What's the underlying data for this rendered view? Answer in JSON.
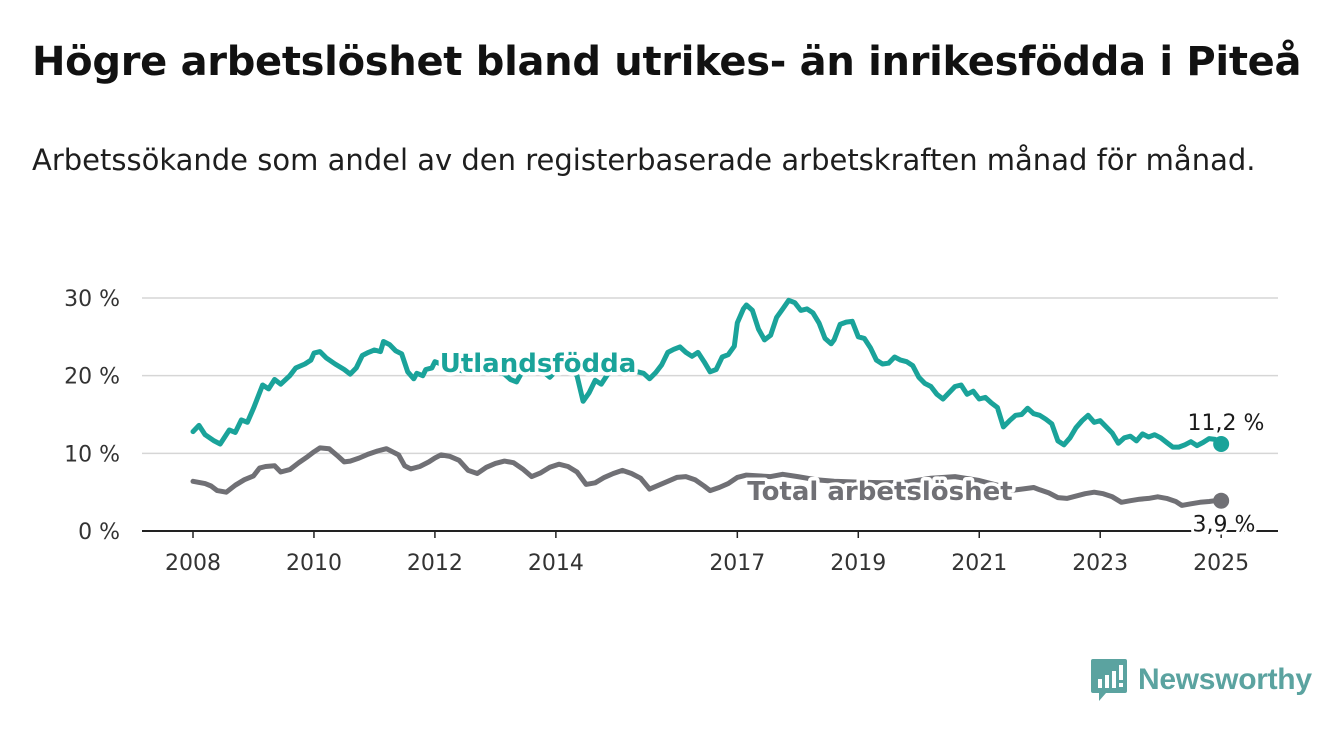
{
  "title": "Högre arbetslöshet bland utrikes- än inrikesfödda i Piteå",
  "subtitle": "Arbetssökande som andel av den registerbaserade arbetskraften månad för månad.",
  "brand": {
    "name": "Newsworthy",
    "color": "#5ba3a0"
  },
  "chart_data": {
    "type": "line",
    "title": "Högre arbetslöshet bland utrikes- än inrikesfödda i Piteå",
    "subtitle": "Arbetssökande som andel av den registerbaserade arbetskraften månad för månad.",
    "xlim": [
      2008.0,
      2025.08
    ],
    "ylim": [
      0,
      30
    ],
    "y_ticks": [
      {
        "value": 0,
        "label": "0 %"
      },
      {
        "value": 10,
        "label": "10 %"
      },
      {
        "value": 20,
        "label": "20 %"
      },
      {
        "value": 30,
        "label": "30 %"
      }
    ],
    "x_ticks": [
      {
        "value": 2008,
        "label": "2008"
      },
      {
        "value": 2010,
        "label": "2010"
      },
      {
        "value": 2012,
        "label": "2012"
      },
      {
        "value": 2014,
        "label": "2014"
      },
      {
        "value": 2017,
        "label": "2017"
      },
      {
        "value": 2019,
        "label": "2019"
      },
      {
        "value": 2021,
        "label": "2021"
      },
      {
        "value": 2023,
        "label": "2023"
      },
      {
        "value": 2025,
        "label": "2025"
      }
    ],
    "grid": true,
    "legend": "inline labels",
    "series": [
      {
        "name": "Utlandsfödda",
        "color": "#1aa39a",
        "end_label": "11,2 %",
        "points": [
          [
            2008.0,
            12.8
          ],
          [
            2008.1,
            13.6
          ],
          [
            2008.2,
            12.4
          ],
          [
            2008.35,
            11.6
          ],
          [
            2008.45,
            11.2
          ],
          [
            2008.6,
            13.0
          ],
          [
            2008.7,
            12.7
          ],
          [
            2008.8,
            14.3
          ],
          [
            2008.9,
            14.0
          ],
          [
            2009.0,
            15.8
          ],
          [
            2009.15,
            18.8
          ],
          [
            2009.25,
            18.3
          ],
          [
            2009.35,
            19.5
          ],
          [
            2009.45,
            18.9
          ],
          [
            2009.6,
            20.0
          ],
          [
            2009.7,
            21.0
          ],
          [
            2009.85,
            21.5
          ],
          [
            2009.95,
            22.0
          ],
          [
            2010.0,
            22.9
          ],
          [
            2010.1,
            23.1
          ],
          [
            2010.2,
            22.3
          ],
          [
            2010.35,
            21.5
          ],
          [
            2010.5,
            20.8
          ],
          [
            2010.6,
            20.2
          ],
          [
            2010.7,
            21.0
          ],
          [
            2010.8,
            22.6
          ],
          [
            2010.9,
            23.0
          ],
          [
            2011.0,
            23.3
          ],
          [
            2011.1,
            23.1
          ],
          [
            2011.15,
            24.4
          ],
          [
            2011.25,
            24.0
          ],
          [
            2011.35,
            23.2
          ],
          [
            2011.45,
            22.8
          ],
          [
            2011.55,
            20.5
          ],
          [
            2011.65,
            19.6
          ],
          [
            2011.7,
            20.3
          ],
          [
            2011.8,
            20.0
          ],
          [
            2011.85,
            20.8
          ],
          [
            2011.95,
            21.0
          ],
          [
            2012.0,
            21.8
          ],
          [
            2012.1,
            21.5
          ],
          [
            2012.3,
            21.0
          ],
          [
            2012.5,
            20.5
          ],
          [
            2012.7,
            20.8
          ],
          [
            2012.9,
            21.0
          ],
          [
            2013.0,
            20.6
          ],
          [
            2013.15,
            20.2
          ],
          [
            2013.25,
            19.5
          ],
          [
            2013.35,
            19.2
          ],
          [
            2013.45,
            20.6
          ],
          [
            2013.6,
            21.5
          ],
          [
            2013.75,
            20.8
          ],
          [
            2013.9,
            19.8
          ],
          [
            2014.0,
            20.6
          ],
          [
            2014.2,
            21.3
          ],
          [
            2014.35,
            20.0
          ],
          [
            2014.45,
            16.7
          ],
          [
            2014.55,
            17.8
          ],
          [
            2014.65,
            19.4
          ],
          [
            2014.75,
            18.9
          ],
          [
            2014.85,
            20.1
          ],
          [
            2014.95,
            21.0
          ],
          [
            2015.1,
            21.8
          ],
          [
            2015.3,
            20.6
          ],
          [
            2015.45,
            20.3
          ],
          [
            2015.55,
            19.6
          ],
          [
            2015.65,
            20.4
          ],
          [
            2015.75,
            21.4
          ],
          [
            2015.85,
            23.0
          ],
          [
            2015.95,
            23.4
          ],
          [
            2016.05,
            23.7
          ],
          [
            2016.15,
            23.0
          ],
          [
            2016.25,
            22.5
          ],
          [
            2016.35,
            23.0
          ],
          [
            2016.45,
            21.8
          ],
          [
            2016.55,
            20.5
          ],
          [
            2016.65,
            20.8
          ],
          [
            2016.75,
            22.4
          ],
          [
            2016.85,
            22.7
          ],
          [
            2016.95,
            23.8
          ],
          [
            2017.0,
            26.8
          ],
          [
            2017.1,
            28.6
          ],
          [
            2017.15,
            29.1
          ],
          [
            2017.25,
            28.4
          ],
          [
            2017.35,
            26.0
          ],
          [
            2017.45,
            24.6
          ],
          [
            2017.55,
            25.2
          ],
          [
            2017.65,
            27.5
          ],
          [
            2017.75,
            28.6
          ],
          [
            2017.85,
            29.7
          ],
          [
            2017.95,
            29.4
          ],
          [
            2018.05,
            28.4
          ],
          [
            2018.15,
            28.6
          ],
          [
            2018.25,
            28.1
          ],
          [
            2018.35,
            26.8
          ],
          [
            2018.45,
            24.8
          ],
          [
            2018.55,
            24.1
          ],
          [
            2018.6,
            24.6
          ],
          [
            2018.7,
            26.6
          ],
          [
            2018.8,
            26.9
          ],
          [
            2018.9,
            27.0
          ],
          [
            2019.0,
            25.0
          ],
          [
            2019.1,
            24.8
          ],
          [
            2019.2,
            23.6
          ],
          [
            2019.3,
            22.0
          ],
          [
            2019.4,
            21.5
          ],
          [
            2019.5,
            21.6
          ],
          [
            2019.6,
            22.4
          ],
          [
            2019.7,
            22.0
          ],
          [
            2019.8,
            21.8
          ],
          [
            2019.9,
            21.3
          ],
          [
            2020.0,
            19.8
          ],
          [
            2020.1,
            19.0
          ],
          [
            2020.2,
            18.6
          ],
          [
            2020.3,
            17.6
          ],
          [
            2020.4,
            17.0
          ],
          [
            2020.5,
            17.8
          ],
          [
            2020.6,
            18.6
          ],
          [
            2020.7,
            18.8
          ],
          [
            2020.8,
            17.6
          ],
          [
            2020.9,
            18.0
          ],
          [
            2021.0,
            17.0
          ],
          [
            2021.1,
            17.2
          ],
          [
            2021.2,
            16.5
          ],
          [
            2021.3,
            15.9
          ],
          [
            2021.4,
            13.4
          ],
          [
            2021.5,
            14.2
          ],
          [
            2021.6,
            14.9
          ],
          [
            2021.7,
            15.0
          ],
          [
            2021.8,
            15.8
          ],
          [
            2021.9,
            15.1
          ],
          [
            2022.0,
            14.9
          ],
          [
            2022.1,
            14.4
          ],
          [
            2022.2,
            13.8
          ],
          [
            2022.3,
            11.6
          ],
          [
            2022.4,
            11.1
          ],
          [
            2022.5,
            12.0
          ],
          [
            2022.6,
            13.3
          ],
          [
            2022.7,
            14.2
          ],
          [
            2022.8,
            14.9
          ],
          [
            2022.9,
            14.0
          ],
          [
            2023.0,
            14.2
          ],
          [
            2023.1,
            13.4
          ],
          [
            2023.2,
            12.6
          ],
          [
            2023.3,
            11.3
          ],
          [
            2023.4,
            12.0
          ],
          [
            2023.5,
            12.2
          ],
          [
            2023.6,
            11.6
          ],
          [
            2023.7,
            12.5
          ],
          [
            2023.8,
            12.1
          ],
          [
            2023.9,
            12.4
          ],
          [
            2024.0,
            12.0
          ],
          [
            2024.1,
            11.4
          ],
          [
            2024.2,
            10.8
          ],
          [
            2024.3,
            10.8
          ],
          [
            2024.4,
            11.1
          ],
          [
            2024.5,
            11.5
          ],
          [
            2024.6,
            11.0
          ],
          [
            2024.7,
            11.4
          ],
          [
            2024.8,
            11.9
          ],
          [
            2024.9,
            11.8
          ],
          [
            2025.0,
            11.2
          ]
        ]
      },
      {
        "name": "Total arbetslöshet",
        "color": "#707075",
        "end_label": "3,9 %",
        "points": [
          [
            2008.0,
            6.4
          ],
          [
            2008.2,
            6.1
          ],
          [
            2008.3,
            5.8
          ],
          [
            2008.4,
            5.2
          ],
          [
            2008.55,
            5.0
          ],
          [
            2008.7,
            5.9
          ],
          [
            2008.85,
            6.6
          ],
          [
            2009.0,
            7.1
          ],
          [
            2009.1,
            8.1
          ],
          [
            2009.2,
            8.3
          ],
          [
            2009.35,
            8.4
          ],
          [
            2009.45,
            7.6
          ],
          [
            2009.6,
            7.9
          ],
          [
            2009.75,
            8.8
          ],
          [
            2009.9,
            9.6
          ],
          [
            2010.0,
            10.2
          ],
          [
            2010.1,
            10.7
          ],
          [
            2010.25,
            10.6
          ],
          [
            2010.4,
            9.6
          ],
          [
            2010.5,
            8.9
          ],
          [
            2010.6,
            9.0
          ],
          [
            2010.75,
            9.4
          ],
          [
            2010.9,
            9.9
          ],
          [
            2011.05,
            10.3
          ],
          [
            2011.2,
            10.6
          ],
          [
            2011.3,
            10.2
          ],
          [
            2011.4,
            9.8
          ],
          [
            2011.5,
            8.4
          ],
          [
            2011.6,
            8.0
          ],
          [
            2011.75,
            8.3
          ],
          [
            2011.9,
            8.9
          ],
          [
            2012.0,
            9.4
          ],
          [
            2012.1,
            9.8
          ],
          [
            2012.25,
            9.6
          ],
          [
            2012.4,
            9.1
          ],
          [
            2012.55,
            7.8
          ],
          [
            2012.7,
            7.4
          ],
          [
            2012.85,
            8.2
          ],
          [
            2013.0,
            8.7
          ],
          [
            2013.15,
            9.0
          ],
          [
            2013.3,
            8.8
          ],
          [
            2013.45,
            8.0
          ],
          [
            2013.6,
            7.0
          ],
          [
            2013.75,
            7.5
          ],
          [
            2013.9,
            8.2
          ],
          [
            2014.05,
            8.6
          ],
          [
            2014.2,
            8.3
          ],
          [
            2014.35,
            7.6
          ],
          [
            2014.5,
            6.0
          ],
          [
            2014.65,
            6.2
          ],
          [
            2014.8,
            6.9
          ],
          [
            2014.95,
            7.4
          ],
          [
            2015.1,
            7.8
          ],
          [
            2015.25,
            7.4
          ],
          [
            2015.4,
            6.8
          ],
          [
            2015.55,
            5.4
          ],
          [
            2015.7,
            5.9
          ],
          [
            2015.85,
            6.4
          ],
          [
            2016.0,
            6.9
          ],
          [
            2016.15,
            7.0
          ],
          [
            2016.3,
            6.6
          ],
          [
            2016.45,
            5.8
          ],
          [
            2016.55,
            5.2
          ],
          [
            2016.7,
            5.6
          ],
          [
            2016.85,
            6.1
          ],
          [
            2017.0,
            6.9
          ],
          [
            2017.15,
            7.2
          ],
          [
            2017.35,
            7.1
          ],
          [
            2017.55,
            7.0
          ],
          [
            2017.75,
            7.3
          ],
          [
            2018.0,
            7.0
          ],
          [
            2018.3,
            6.6
          ],
          [
            2018.6,
            6.4
          ],
          [
            2019.0,
            6.3
          ],
          [
            2019.4,
            6.2
          ],
          [
            2019.8,
            6.3
          ],
          [
            2020.2,
            6.8
          ],
          [
            2020.6,
            7.0
          ],
          [
            2021.0,
            6.5
          ],
          [
            2021.3,
            5.9
          ],
          [
            2021.5,
            5.2
          ],
          [
            2021.7,
            5.4
          ],
          [
            2021.9,
            5.6
          ],
          [
            2022.0,
            5.3
          ],
          [
            2022.15,
            4.9
          ],
          [
            2022.3,
            4.3
          ],
          [
            2022.45,
            4.2
          ],
          [
            2022.6,
            4.5
          ],
          [
            2022.75,
            4.8
          ],
          [
            2022.9,
            5.0
          ],
          [
            2023.05,
            4.8
          ],
          [
            2023.2,
            4.4
          ],
          [
            2023.35,
            3.7
          ],
          [
            2023.5,
            3.9
          ],
          [
            2023.65,
            4.1
          ],
          [
            2023.8,
            4.2
          ],
          [
            2023.95,
            4.4
          ],
          [
            2024.1,
            4.2
          ],
          [
            2024.25,
            3.8
          ],
          [
            2024.35,
            3.3
          ],
          [
            2024.5,
            3.5
          ],
          [
            2024.65,
            3.7
          ],
          [
            2024.8,
            3.8
          ],
          [
            2024.9,
            3.9
          ],
          [
            2025.0,
            3.9
          ]
        ]
      }
    ]
  }
}
